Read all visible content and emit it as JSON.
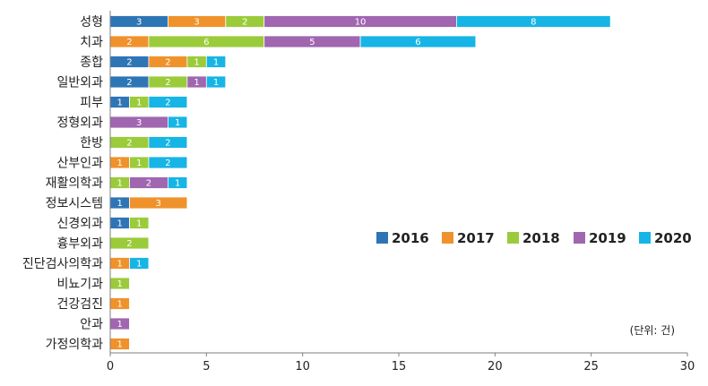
{
  "chart_data": {
    "type": "bar",
    "orientation": "horizontal",
    "stacked": true,
    "categories": [
      "성형",
      "치과",
      "종합",
      "일반외과",
      "피부",
      "정형외과",
      "한방",
      "산부인과",
      "재활의학과",
      "정보시스템",
      "신경외과",
      "흉부외과",
      "진단검사의학과",
      "비뇨기과",
      "건강검진",
      "안과",
      "가정의학과"
    ],
    "series": [
      {
        "name": "2016",
        "color": "#2e75b6",
        "values": [
          3,
          0,
          2,
          2,
          1,
          0,
          0,
          0,
          0,
          1,
          1,
          0,
          0,
          0,
          0,
          0,
          0
        ]
      },
      {
        "name": "2017",
        "color": "#f0922b",
        "values": [
          3,
          2,
          2,
          0,
          0,
          0,
          0,
          1,
          0,
          3,
          0,
          0,
          1,
          0,
          1,
          0,
          1
        ]
      },
      {
        "name": "2018",
        "color": "#9bcb3b",
        "values": [
          2,
          6,
          1,
          2,
          1,
          0,
          2,
          1,
          1,
          0,
          1,
          2,
          0,
          1,
          0,
          0,
          0
        ]
      },
      {
        "name": "2019",
        "color": "#a066b0",
        "values": [
          10,
          5,
          0,
          1,
          0,
          3,
          0,
          0,
          2,
          0,
          0,
          0,
          0,
          0,
          0,
          1,
          0
        ]
      },
      {
        "name": "2020",
        "color": "#16b5e5",
        "values": [
          8,
          6,
          1,
          1,
          2,
          1,
          2,
          2,
          1,
          0,
          0,
          0,
          1,
          0,
          0,
          0,
          0
        ]
      }
    ],
    "xlim": [
      0,
      30
    ],
    "xticks": [
      "0",
      "5",
      "10",
      "15",
      "20",
      "25",
      "30"
    ],
    "legend_position": "center-right",
    "grid": false,
    "note": "(단위: 건)"
  }
}
